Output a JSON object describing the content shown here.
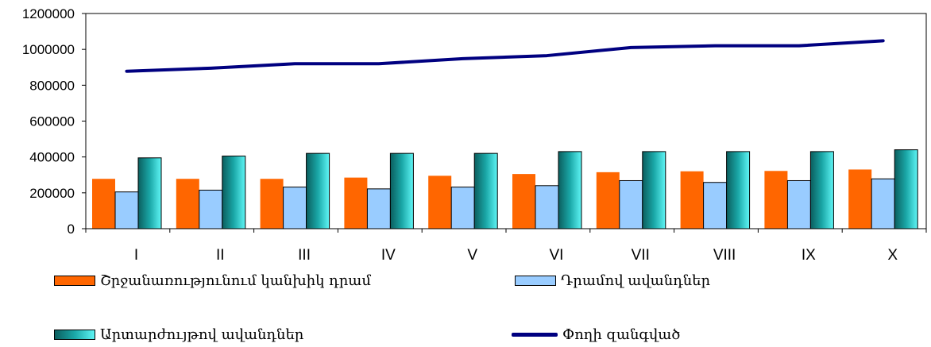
{
  "chart_data": {
    "type": "bar",
    "categories": [
      "I",
      "II",
      "III",
      "IV",
      "V",
      "VI",
      "VII",
      "VIII",
      "IX",
      "X"
    ],
    "series": [
      {
        "name": "Շրջանառությունում կանխիկ դրամ",
        "kind": "bar",
        "color": "#FF6600",
        "values": [
          278000,
          278000,
          278000,
          285000,
          295000,
          305000,
          315000,
          320000,
          322000,
          330000
        ]
      },
      {
        "name": "Դրամով ավանդներ",
        "kind": "bar",
        "color": "#99CCFF",
        "values": [
          205000,
          215000,
          232000,
          222000,
          232000,
          240000,
          268000,
          258000,
          268000,
          278000
        ]
      },
      {
        "name": "Արտարժույթով ավանդներ",
        "kind": "bar",
        "color": "#008080",
        "values": [
          395000,
          405000,
          420000,
          420000,
          420000,
          430000,
          430000,
          430000,
          430000,
          440000
        ]
      },
      {
        "name": "Փողի զանգված",
        "kind": "line",
        "color": "#000080",
        "values": [
          878000,
          895000,
          920000,
          920000,
          948000,
          965000,
          1010000,
          1020000,
          1020000,
          1048000
        ]
      }
    ],
    "yticks": [
      "0",
      "200000",
      "400000",
      "600000",
      "800000",
      "1000000",
      "1200000"
    ],
    "ylim": [
      0,
      1200000
    ],
    "grid": false,
    "legend_position": "bottom"
  }
}
